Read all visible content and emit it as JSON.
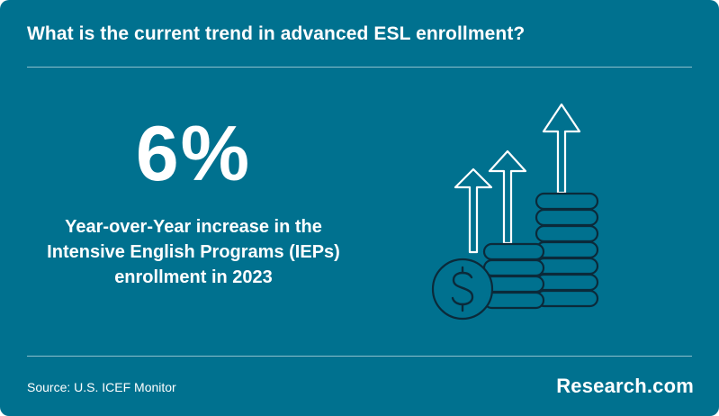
{
  "header": {
    "title": "What is the current trend in advanced ESL enrollment?"
  },
  "stat": {
    "value": "6%",
    "description_lines": [
      "Year-over-Year increase in the",
      "Intensive English Programs (IEPs)",
      "enrollment in 2023"
    ]
  },
  "illustration": {
    "icon": "coins-growth-arrows-icon",
    "coin_icon": "dollar-coin-icon"
  },
  "footer": {
    "source": "Source: U.S. ICEF Monitor",
    "brand": "Research.com"
  },
  "colors": {
    "background": "#00718f",
    "foreground": "#ffffff",
    "icon_stroke": "#0b2a3a"
  }
}
